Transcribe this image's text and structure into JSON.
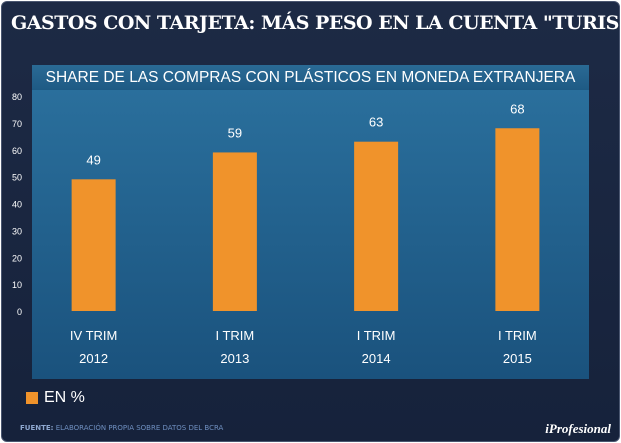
{
  "header": {
    "title": "GASTOS CON TARJETA: MÁS PESO EN LA CUENTA \"TURISMO\""
  },
  "chart_data": {
    "type": "bar",
    "title": "SHARE DE LAS COMPRAS CON PLÁSTICOS EN MONEDA EXTRANJERA",
    "categories": [
      "IV TRIM",
      "I TRIM",
      "I TRIM",
      "I TRIM"
    ],
    "years": [
      "2012",
      "2013",
      "2014",
      "2015"
    ],
    "values": [
      49,
      59,
      63,
      68
    ],
    "data_labels": [
      "49",
      "59",
      "63",
      "68"
    ],
    "ylim": [
      0,
      80
    ],
    "yticks": [
      "0",
      "10",
      "20",
      "30",
      "40",
      "50",
      "60",
      "70",
      "80"
    ],
    "legend": "EN %",
    "legend_position": "bottom-left",
    "grid": false,
    "bar_color": "#f0932b",
    "plot_background": "#1f5f8e"
  },
  "footer": {
    "source_label": "FUENTE:",
    "source_text": "ELABORACIÓN PROPIA SOBRE DATOS DEL BCRA",
    "brand": "iProfesional"
  }
}
